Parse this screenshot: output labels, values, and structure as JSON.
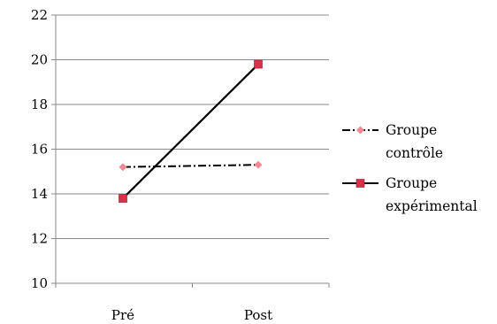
{
  "chart_data": {
    "type": "line",
    "categories": [
      "Pré",
      "Post"
    ],
    "ylim": [
      10,
      22
    ],
    "ystep": 2,
    "grid": true,
    "legend_position": "right",
    "series": [
      {
        "name": "Groupe contrôle",
        "name_lines": [
          "Groupe",
          "contrôle"
        ],
        "values": [
          15.2,
          15.3
        ],
        "line_color": "#000000",
        "line_style": "dash-dot",
        "marker": "diamond",
        "marker_color": "#f08a96"
      },
      {
        "name": "Groupe expérimental",
        "name_lines": [
          "Groupe",
          "expérimental"
        ],
        "values": [
          13.8,
          19.8
        ],
        "line_color": "#000000",
        "line_style": "solid",
        "marker": "square",
        "marker_color": "#d8324a"
      }
    ]
  }
}
